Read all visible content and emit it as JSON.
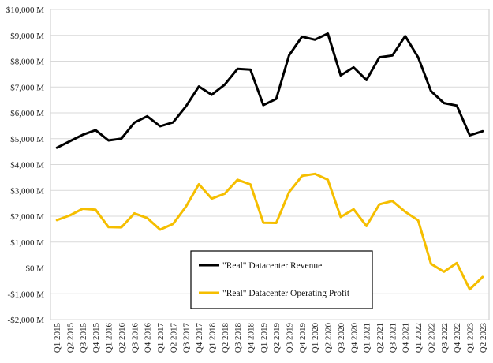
{
  "chart_data": {
    "type": "line",
    "title": "",
    "xlabel": "",
    "ylabel": "",
    "ylim": [
      -2000,
      10000
    ],
    "y_tick_values": [
      -2000,
      -1000,
      0,
      1000,
      2000,
      3000,
      4000,
      5000,
      6000,
      7000,
      8000,
      9000,
      10000
    ],
    "y_tick_labels": [
      "-$2,000 M",
      "-$1,000 M",
      "$0 M",
      "$1,000 M",
      "$2,000 M",
      "$3,000 M",
      "$4,000 M",
      "$5,000 M",
      "$6,000 M",
      "$7,000 M",
      "$8,000 M",
      "$9,000 M",
      "$10,000 M"
    ],
    "grid": "horizontal",
    "legend_position": "lower-center",
    "categories": [
      "Q1 2015",
      "Q2 2015",
      "Q3 2015",
      "Q4 2015",
      "Q1 2016",
      "Q2 2016",
      "Q3 2016",
      "Q4 2016",
      "Q1 2017",
      "Q2 2017",
      "Q3 2017",
      "Q4 2017",
      "Q1 2018",
      "Q2 2018",
      "Q3 2018",
      "Q4 2018",
      "Q1 2019",
      "Q2 2019",
      "Q3 2019",
      "Q4 2019",
      "Q1 2020",
      "Q2 2020",
      "Q3 2020",
      "Q4 2020",
      "Q1 2021",
      "Q2 2021",
      "Q3 2021",
      "Q4 2021",
      "Q1 2022",
      "Q2 2022",
      "Q3 2022",
      "Q4 2022",
      "Q1 2023",
      "Q2 2023"
    ],
    "series": [
      {
        "name": "\"Real\" Datacenter Revenue",
        "color": "#000000",
        "values": [
          4650,
          4900,
          5150,
          5330,
          4930,
          5000,
          5620,
          5870,
          5480,
          5630,
          6250,
          7020,
          6700,
          7090,
          7700,
          7670,
          6300,
          6540,
          8230,
          8950,
          8830,
          9070,
          7450,
          7760,
          7270,
          8150,
          8220,
          8970,
          8150,
          6840,
          6380,
          6280,
          5130,
          5290
        ]
      },
      {
        "name": "\"Real\" Datacenter Operating Profit",
        "color": "#F5BE00",
        "values": [
          1850,
          2030,
          2290,
          2250,
          1580,
          1570,
          2110,
          1930,
          1480,
          1700,
          2370,
          3240,
          2680,
          2870,
          3410,
          3230,
          1750,
          1740,
          2930,
          3560,
          3640,
          3410,
          1970,
          2270,
          1620,
          2460,
          2590,
          2170,
          1840,
          160,
          -150,
          190,
          -830,
          -350
        ]
      }
    ]
  }
}
